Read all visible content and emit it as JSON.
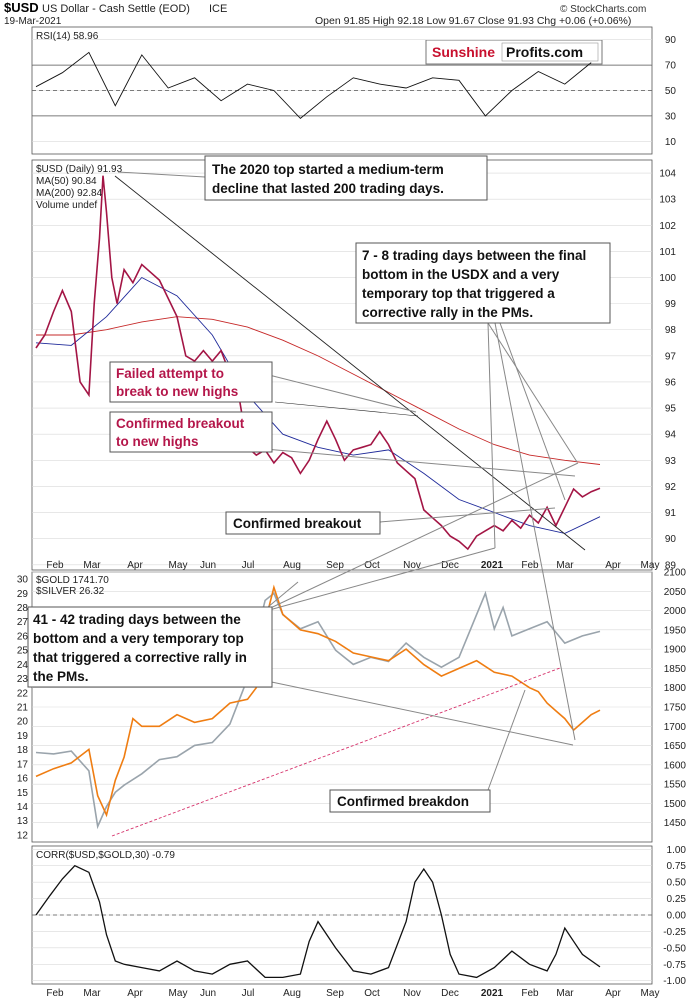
{
  "header": {
    "symbol": "$USD",
    "name": "US Dollar - Cash Settle (EOD)",
    "exchange": "ICE",
    "date": "19-Mar-2021",
    "ohlc": "Open 91.85  High 92.18  Low 91.67  Close 91.93  Chg +0.06 (+0.06%)",
    "watermark": "© StockCharts.com"
  },
  "branding": {
    "part1": "Sunshine",
    "part2": "Profits.com"
  },
  "colors": {
    "usd": "#111111",
    "usd_up": "#111111",
    "usd_down": "#c2185b",
    "ma50": "#1f2a9a",
    "ma200": "#c62828",
    "gold": "#ef7d12",
    "silver": "#9aa4ac",
    "rsi": "#111111",
    "corr": "#111111",
    "brand_red": "#c8102e",
    "annotation_red": "#b4164a",
    "support_line": "#d6336c"
  },
  "months": [
    "Feb",
    "Mar",
    "Apr",
    "May",
    "Jun",
    "Jul",
    "Aug",
    "Sep",
    "Oct",
    "Nov",
    "Dec",
    "2021",
    "Feb",
    "Mar",
    "Apr",
    "May"
  ],
  "chart_data": [
    {
      "type": "line",
      "panel": "rsi",
      "legend": "RSI(14) 58.96",
      "ylim": [
        0,
        100
      ],
      "ticks": [
        10,
        30,
        50,
        70,
        90
      ],
      "reference_lines": [
        30,
        50,
        70
      ],
      "x": [
        0,
        15,
        30,
        45,
        60,
        75,
        90,
        105,
        120,
        135,
        150,
        165,
        180,
        195,
        210,
        225,
        240,
        255,
        270,
        285,
        300,
        315
      ],
      "values": [
        53,
        64,
        80,
        38,
        78,
        52,
        60,
        42,
        55,
        50,
        28,
        45,
        60,
        55,
        52,
        60,
        58,
        30,
        50,
        65,
        55,
        72
      ]
    },
    {
      "type": "line",
      "panel": "usd",
      "legend": [
        "$USD (Daily) 91.93",
        "MA(50) 90.84",
        "MA(200) 92.84",
        "Volume undef"
      ],
      "ylim": [
        88.8,
        104.5
      ],
      "ticks": [
        89,
        90,
        91,
        92,
        93,
        94,
        95,
        96,
        97,
        98,
        99,
        100,
        101,
        102,
        103,
        104
      ],
      "series": [
        {
          "name": "$USD (Daily) 91.93",
          "x": [
            0,
            5,
            10,
            15,
            20,
            25,
            30,
            33,
            36,
            38,
            40,
            43,
            46,
            50,
            55,
            60,
            65,
            70,
            75,
            80,
            85,
            90,
            95,
            100,
            105,
            110,
            115,
            120,
            125,
            130,
            135,
            140,
            145,
            150,
            155,
            160,
            165,
            170,
            175,
            180,
            185,
            190,
            195,
            200,
            205,
            210,
            215,
            220,
            225,
            230,
            235,
            240,
            245,
            250,
            255,
            260,
            265,
            270,
            275,
            280,
            285,
            290,
            295,
            300,
            305,
            310,
            315,
            320
          ],
          "values": [
            97.3,
            97.8,
            98.7,
            99.5,
            98.7,
            96.0,
            95.5,
            99.0,
            101.5,
            103.9,
            102.5,
            100.0,
            99.0,
            100.3,
            99.8,
            100.5,
            100.2,
            99.9,
            99.2,
            98.5,
            97.0,
            96.8,
            97.2,
            96.8,
            97.2,
            96.3,
            95.5,
            93.5,
            93.2,
            93.4,
            92.9,
            93.3,
            93.1,
            92.5,
            93.0,
            93.8,
            94.5,
            93.8,
            93.0,
            93.4,
            93.5,
            93.6,
            94.1,
            93.6,
            92.9,
            92.6,
            92.3,
            91.1,
            90.8,
            90.5,
            90.1,
            89.9,
            89.6,
            90.1,
            90.3,
            90.5,
            90.3,
            90.7,
            90.4,
            90.9,
            90.6,
            91.2,
            90.5,
            91.2,
            91.9,
            91.6,
            91.8,
            91.93
          ]
        },
        {
          "name": "MA(50) 90.84",
          "x": [
            0,
            20,
            40,
            60,
            80,
            100,
            120,
            140,
            160,
            180,
            200,
            220,
            240,
            260,
            280,
            300,
            320
          ],
          "values": [
            97.5,
            97.4,
            98.5,
            100.0,
            99.3,
            97.8,
            95.5,
            94.0,
            93.5,
            93.2,
            93.4,
            92.5,
            91.5,
            91.0,
            90.5,
            90.2,
            90.84
          ]
        },
        {
          "name": "MA(200) 92.84",
          "x": [
            0,
            20,
            40,
            60,
            80,
            100,
            120,
            140,
            160,
            180,
            200,
            220,
            240,
            260,
            280,
            300,
            320
          ],
          "values": [
            97.8,
            97.8,
            98.0,
            98.3,
            98.5,
            98.4,
            98.1,
            97.6,
            97.0,
            96.3,
            95.6,
            94.9,
            94.2,
            93.6,
            93.2,
            93.0,
            92.84
          ]
        }
      ]
    },
    {
      "type": "line",
      "panel": "gold_silver",
      "legend": [
        "$GOLD 1741.70",
        "$SILVER 26.32"
      ],
      "y_left_label": "silver",
      "ylim_left": [
        11.5,
        30.5
      ],
      "ticks_left": [
        12,
        13,
        14,
        15,
        16,
        17,
        18,
        19,
        20,
        21,
        22,
        23,
        24,
        25,
        26,
        27,
        28,
        29,
        30
      ],
      "ylim_right": [
        1400,
        2100
      ],
      "ticks_right": [
        1450,
        1500,
        1550,
        1600,
        1650,
        1700,
        1750,
        1800,
        1850,
        1900,
        1950,
        2000,
        2050,
        2100
      ],
      "series": [
        {
          "name": "$GOLD 1741.70",
          "x": [
            0,
            10,
            20,
            30,
            35,
            40,
            45,
            50,
            55,
            60,
            70,
            80,
            90,
            100,
            110,
            120,
            125,
            130,
            135,
            140,
            150,
            160,
            170,
            180,
            190,
            200,
            210,
            220,
            230,
            240,
            250,
            260,
            270,
            280,
            285,
            290,
            295,
            300,
            305,
            310,
            315,
            320
          ],
          "values": [
            1570,
            1590,
            1605,
            1640,
            1520,
            1470,
            1560,
            1620,
            1720,
            1700,
            1700,
            1730,
            1710,
            1720,
            1760,
            1770,
            1800,
            1970,
            2060,
            1990,
            1950,
            1940,
            1920,
            1890,
            1880,
            1870,
            1900,
            1860,
            1830,
            1850,
            1870,
            1840,
            1830,
            1800,
            1790,
            1760,
            1740,
            1720,
            1690,
            1710,
            1730,
            1741.7
          ]
        },
        {
          "name": "$SILVER 26.32",
          "x": [
            0,
            10,
            20,
            30,
            35,
            40,
            45,
            50,
            60,
            70,
            80,
            90,
            100,
            110,
            120,
            125,
            130,
            135,
            140,
            150,
            160,
            170,
            180,
            190,
            200,
            210,
            220,
            230,
            240,
            250,
            255,
            260,
            265,
            270,
            280,
            290,
            300,
            310,
            320
          ],
          "values": [
            17.8,
            17.7,
            17.9,
            16.5,
            12.6,
            14.0,
            15.0,
            15.5,
            16.3,
            17.3,
            17.5,
            18.3,
            18.5,
            19.8,
            23.0,
            26.0,
            28.5,
            29.0,
            27.5,
            26.5,
            27.0,
            25.0,
            24.0,
            24.5,
            24.2,
            25.5,
            24.5,
            23.8,
            24.5,
            27.5,
            29.0,
            26.5,
            28.0,
            26.0,
            26.5,
            27.0,
            25.5,
            26.0,
            26.32
          ]
        }
      ]
    },
    {
      "type": "line",
      "panel": "corr",
      "legend": "CORR($USD,$GOLD,30) -0.79",
      "ylim": [
        -1.05,
        1.05
      ],
      "ticks": [
        1.0,
        0.75,
        0.5,
        0.25,
        0.0,
        -0.25,
        -0.5,
        -0.75,
        -1.0
      ],
      "tick_labels": [
        "1.00",
        "0.75",
        "0.50",
        "0.25",
        "0.00",
        "-0.25",
        "-0.50",
        "-0.75",
        "-1.00"
      ],
      "x": [
        0,
        8,
        15,
        22,
        30,
        36,
        40,
        45,
        50,
        60,
        70,
        80,
        90,
        100,
        110,
        120,
        130,
        140,
        150,
        155,
        160,
        170,
        180,
        190,
        200,
        210,
        215,
        220,
        225,
        230,
        235,
        240,
        250,
        260,
        270,
        280,
        290,
        295,
        300,
        305,
        310,
        320
      ],
      "values": [
        0.0,
        0.3,
        0.55,
        0.75,
        0.65,
        0.2,
        -0.3,
        -0.7,
        -0.75,
        -0.8,
        -0.85,
        -0.7,
        -0.85,
        -0.9,
        -0.75,
        -0.7,
        -0.95,
        -0.95,
        -0.9,
        -0.4,
        -0.1,
        -0.5,
        -0.85,
        -0.9,
        -0.8,
        -0.1,
        0.5,
        0.7,
        0.5,
        0.0,
        -0.6,
        -0.9,
        -0.95,
        -0.8,
        -0.55,
        -0.75,
        -0.85,
        -0.6,
        -0.2,
        -0.4,
        -0.6,
        -0.79
      ]
    }
  ],
  "annotations": {
    "top2020": [
      "The 2020 top started a medium-term",
      "decline that lasted 200 trading days."
    ],
    "trading78": [
      "7 - 8 trading days between the final",
      "bottom in the USDX and a very",
      "temporary top that triggered a",
      "corrective rally in the PMs."
    ],
    "failed_attempt": [
      "Failed attempt to",
      "break to new highs"
    ],
    "confirmed_breakout_red": [
      "Confirmed breakout",
      "to new highs"
    ],
    "confirmed_breakout": "Confirmed breakout",
    "trading4142": [
      "41 - 42 trading days between the",
      "bottom and a very temporary top",
      "that triggered a corrective rally in",
      "the PMs."
    ],
    "confirmed_breakdown": "Confirmed breakdon"
  }
}
